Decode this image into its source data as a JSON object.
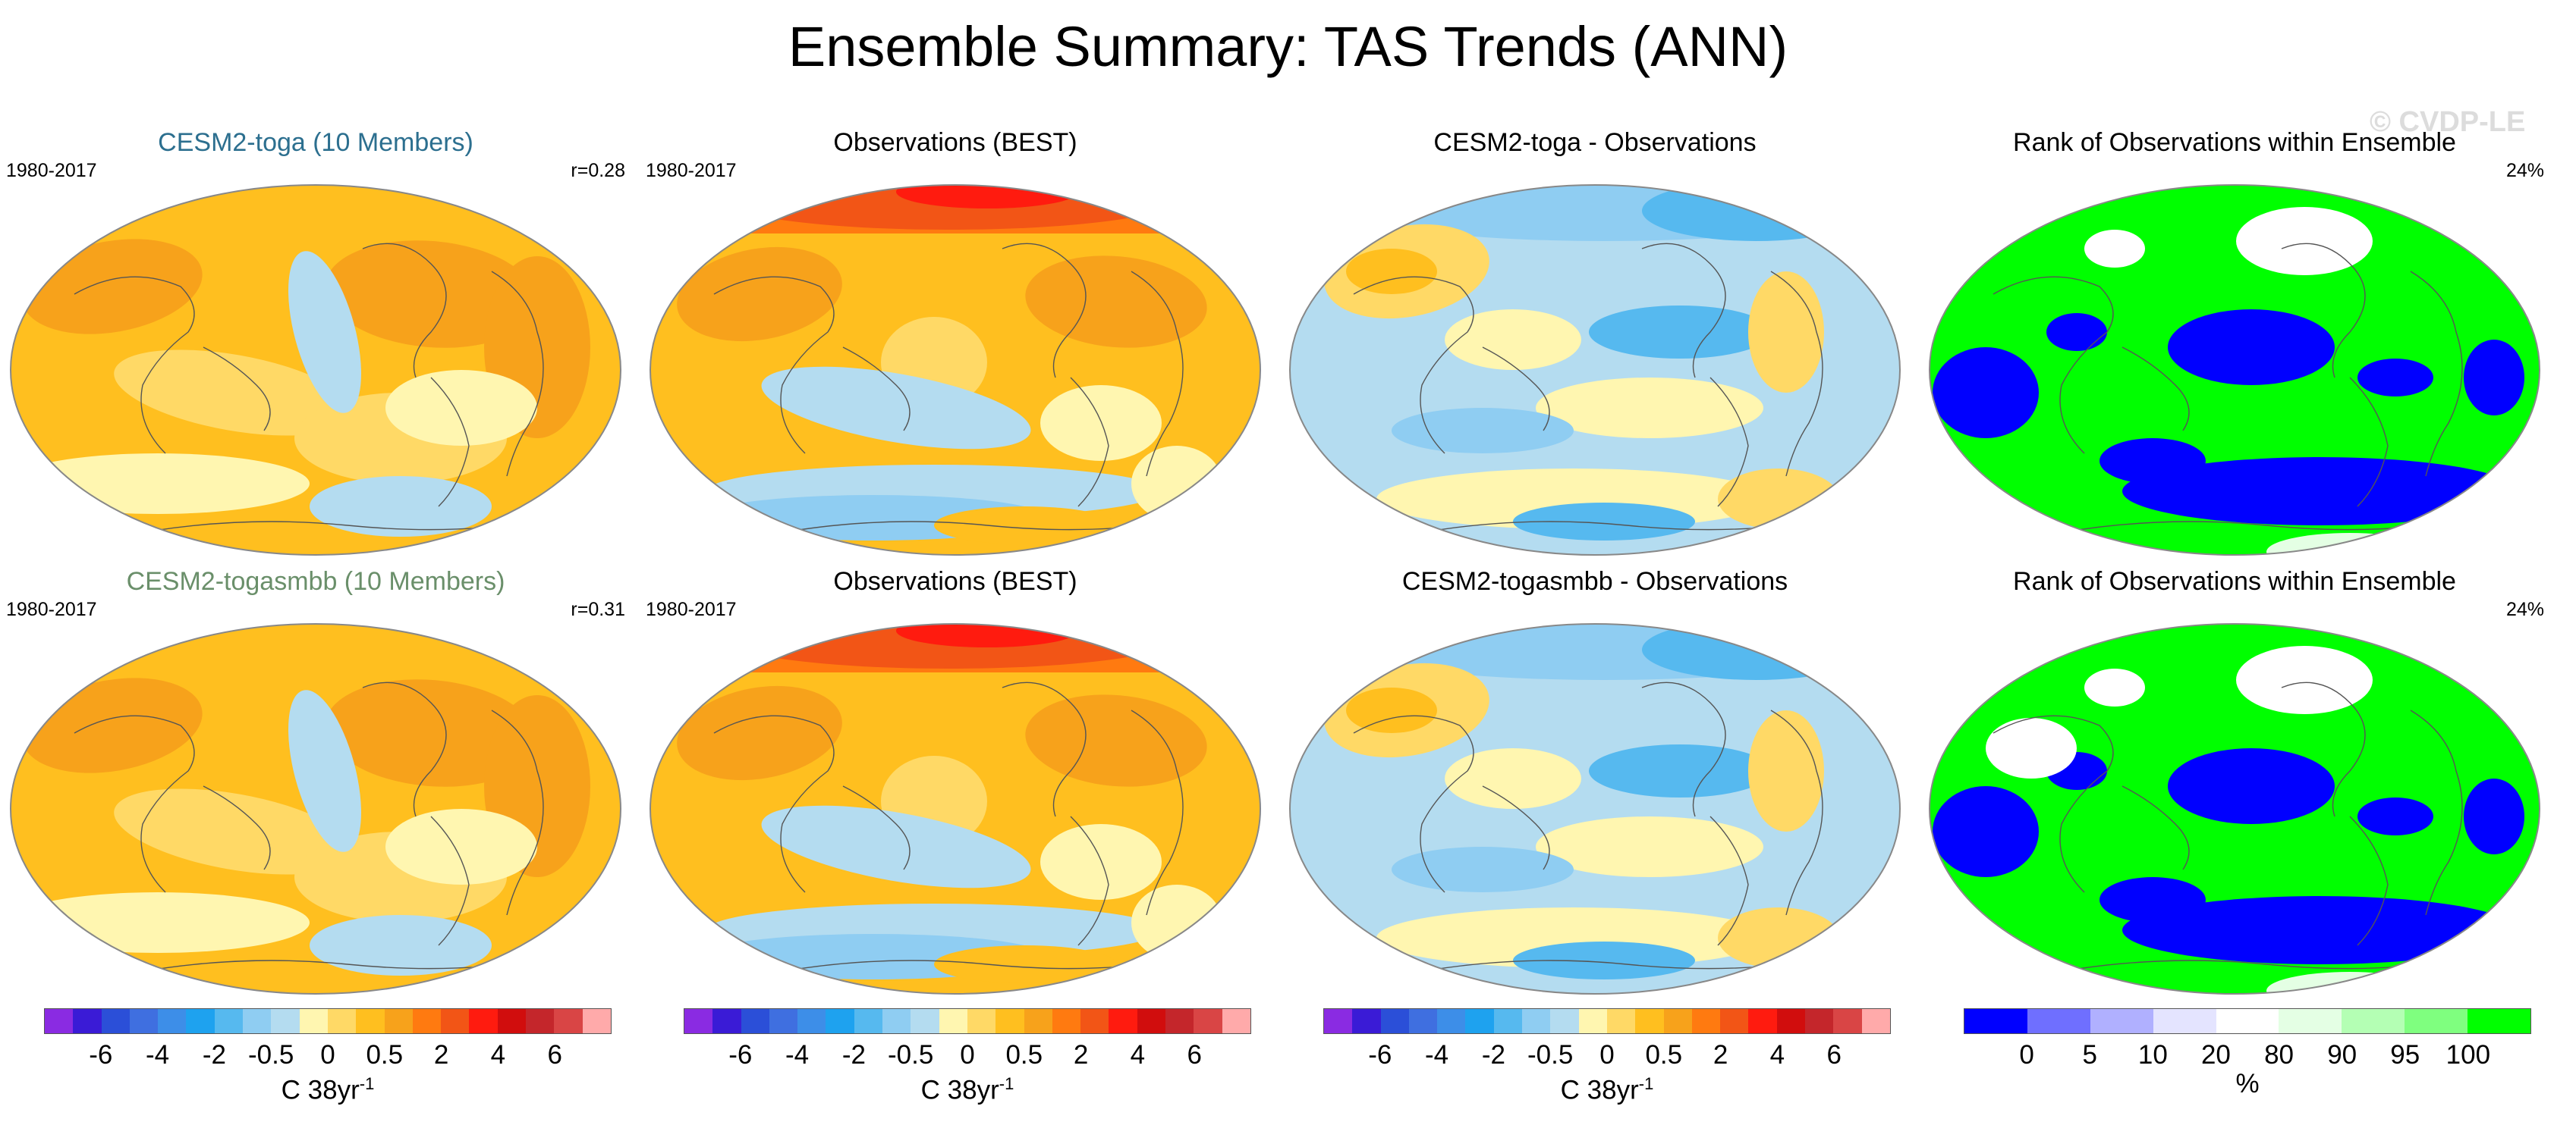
{
  "figure_title": "Ensemble Summary: TAS Trends (ANN)",
  "watermark": "© CVDP-LE",
  "panels": [
    {
      "title": "CESM2-toga (10 Members)",
      "title_color": "#2c6f8f",
      "left_label": "1980-2017",
      "right_label": "r=0.28",
      "kind": "model"
    },
    {
      "title": "Observations (BEST)",
      "title_color": "#000000",
      "left_label": "1980-2017",
      "right_label": "",
      "kind": "obs"
    },
    {
      "title": "CESM2-toga - Observations",
      "title_color": "#000000",
      "left_label": "",
      "right_label": "",
      "kind": "diff"
    },
    {
      "title": "Rank of Observations within Ensemble",
      "title_color": "#000000",
      "left_label": "",
      "right_label": "24%",
      "kind": "rank"
    },
    {
      "title": "CESM2-togasmbb (10 Members)",
      "title_color": "#6a8f6a",
      "left_label": "1980-2017",
      "right_label": "r=0.31",
      "kind": "model"
    },
    {
      "title": "Observations (BEST)",
      "title_color": "#000000",
      "left_label": "1980-2017",
      "right_label": "",
      "kind": "obs"
    },
    {
      "title": "CESM2-togasmbb - Observations",
      "title_color": "#000000",
      "left_label": "",
      "right_label": "",
      "kind": "diff"
    },
    {
      "title": "Rank of Observations within Ensemble",
      "title_color": "#000000",
      "left_label": "",
      "right_label": "24%",
      "kind": "rank"
    }
  ],
  "trend_colorbar": {
    "colors": [
      "#8a2be2",
      "#3a1bd6",
      "#2b4fd8",
      "#3f6fe0",
      "#3d8ee8",
      "#1ea2ef",
      "#56b9ef",
      "#8fcdf2",
      "#b4dcf0",
      "#fff6b0",
      "#ffd966",
      "#ffbf1f",
      "#f7a21b",
      "#ff7a10",
      "#f25516",
      "#ff1b0f",
      "#d10d0d",
      "#c4262b",
      "#d94545",
      "#ffaaaa"
    ],
    "labels": [
      "-6",
      "-4",
      "-2",
      "-0.5",
      "0",
      "0.5",
      "2",
      "4",
      "6"
    ],
    "label_positions": [
      2,
      4,
      6,
      8,
      10,
      12,
      14,
      16,
      18
    ],
    "unit": "C 38yr",
    "unit_sup": "-1"
  },
  "rank_colorbar": {
    "colors": [
      "#0000ff",
      "#6f6fff",
      "#b0b0ff",
      "#e4e4ff",
      "#ffffff",
      "#e4ffe4",
      "#b4ffb4",
      "#7fff7f",
      "#00ff00"
    ],
    "labels": [
      "0",
      "5",
      "10",
      "20",
      "80",
      "90",
      "95",
      "100"
    ],
    "label_positions": [
      1,
      2,
      3,
      4,
      5,
      6,
      7,
      8
    ],
    "unit": "%"
  }
}
